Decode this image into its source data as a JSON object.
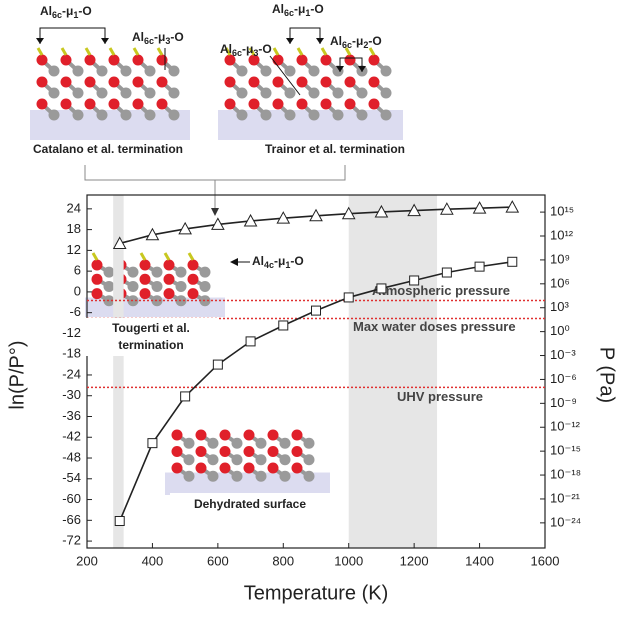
{
  "chart_data": {
    "type": "line",
    "x_label": "Temperature (K)",
    "y_label": "ln(P/P°)",
    "y2_label": "P (Pa)",
    "x": [
      300,
      400,
      500,
      600,
      700,
      800,
      900,
      1000,
      1100,
      1200,
      1300,
      1400,
      1500
    ],
    "series": [
      {
        "marker": "triangle",
        "color": "#222222",
        "values": [
          14,
          16.5,
          18.2,
          19.5,
          20.5,
          21.3,
          22,
          22.6,
          23.1,
          23.5,
          23.9,
          24.2,
          24.5
        ]
      },
      {
        "marker": "square",
        "color": "#222222",
        "values": [
          -66.2,
          -43.7,
          -30.2,
          -21,
          -14.3,
          -9.7,
          -5.4,
          -1.6,
          1,
          3.3,
          5.6,
          7.3,
          8.7
        ]
      }
    ],
    "xlim": [
      200,
      1600
    ],
    "xticks": [
      200,
      400,
      600,
      800,
      1000,
      1200,
      1400,
      1600
    ],
    "ylim": [
      -74,
      28
    ],
    "yticks": [
      24,
      18,
      12,
      6,
      0,
      -6,
      -12,
      -18,
      -24,
      -30,
      -36,
      -42,
      -48,
      -54,
      -60,
      -66,
      -72
    ],
    "y2_log": true,
    "y2lim": [
      7e-28,
      1.4e+17
    ],
    "y2ticks": [
      {
        "value": 1000000000000000.0,
        "label": "10¹⁵"
      },
      {
        "value": 1000000000000.0,
        "label": "10¹²"
      },
      {
        "value": 1000000000.0,
        "label": "10⁹"
      },
      {
        "value": 1000000.0,
        "label": "10⁶"
      },
      {
        "value": 1000.0,
        "label": "10³"
      },
      {
        "value": 1,
        "label": "10⁰"
      },
      {
        "value": 0.001,
        "label": "10⁻³"
      },
      {
        "value": 1e-06,
        "label": "10⁻⁶"
      },
      {
        "value": 1e-09,
        "label": "10⁻⁹"
      },
      {
        "value": 1e-12,
        "label": "10⁻¹²"
      },
      {
        "value": 1e-15,
        "label": "10⁻¹⁵"
      },
      {
        "value": 1e-18,
        "label": "10⁻¹⁸"
      },
      {
        "value": 1e-21,
        "label": "10⁻²¹"
      },
      {
        "value": 1e-24,
        "label": "10⁻²⁴"
      }
    ],
    "shaded_ranges": [
      [
        280,
        312
      ],
      [
        1000,
        1270
      ]
    ],
    "shade_color": "#e6e6e6",
    "reference_lines": [
      {
        "label": "Atmospheric pressure",
        "y": -2.5,
        "color": "#e03030"
      },
      {
        "label": "Max water doses pressure",
        "y": -7.7,
        "color": "#e03030"
      },
      {
        "label": "UHV pressure",
        "y": -27.6,
        "color": "#e03030"
      }
    ],
    "insets": [
      {
        "caption": "Catalano et al. termination",
        "labels": [
          [
            "Al",
            "6c",
            "-μ",
            "1",
            "-O"
          ],
          [
            "Al",
            "6c",
            "-μ",
            "3",
            "-O"
          ]
        ]
      },
      {
        "caption": "Trainor et al. termination",
        "labels": [
          [
            "Al",
            "6c",
            "-μ",
            "1",
            "-O"
          ],
          [
            "Al",
            "6c",
            "-μ",
            "3",
            "-O"
          ],
          [
            "Al",
            "6c",
            "-μ",
            "2",
            "-O"
          ]
        ]
      },
      {
        "caption": [
          "Tougerti et al.",
          "termination"
        ],
        "labels": [
          [
            "Al",
            "4c",
            "-μ",
            "1",
            "-O"
          ]
        ]
      },
      {
        "caption": "Dehydrated surface",
        "labels": []
      }
    ]
  }
}
